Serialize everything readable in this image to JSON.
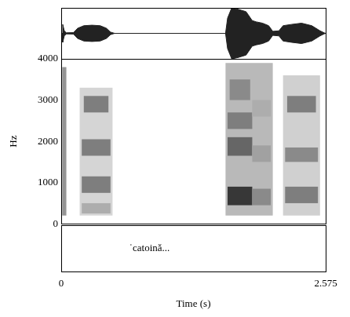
{
  "chart_data": [
    {
      "type": "waveform",
      "xlim": [
        0,
        2.575
      ],
      "xticks": [],
      "ylim": [
        -1,
        1
      ],
      "yticks": [
        0
      ],
      "grid": true,
      "tick_labels": false,
      "color": "#222222",
      "x": [
        0,
        0.01,
        0.015,
        0.03,
        0.05,
        0.12,
        0.16,
        0.22,
        0.3,
        0.38,
        0.44,
        0.48,
        0.52,
        1.6,
        1.62,
        1.66,
        1.72,
        1.8,
        1.86,
        1.9,
        1.96,
        2.02,
        2.06,
        2.12,
        2.16,
        2.24,
        2.34,
        2.44,
        2.52,
        2.56,
        2.575
      ],
      "max": [
        0,
        0,
        0.35,
        0.1,
        0.02,
        0.03,
        0.2,
        0.3,
        0.32,
        0.3,
        0.2,
        0.05,
        0,
        0,
        0.6,
        1.0,
        0.95,
        0.85,
        0.5,
        0.45,
        0.4,
        0.3,
        0.08,
        0.1,
        0.3,
        0.35,
        0.4,
        0.3,
        0.1,
        0.02,
        0
      ],
      "min": [
        0,
        0,
        -0.35,
        -0.1,
        -0.02,
        -0.03,
        -0.2,
        -0.3,
        -0.32,
        -0.3,
        -0.2,
        -0.05,
        0,
        0,
        -0.6,
        -1.0,
        -0.95,
        -0.85,
        -0.5,
        -0.45,
        -0.4,
        -0.3,
        -0.08,
        -0.1,
        -0.3,
        -0.35,
        -0.4,
        -0.3,
        -0.1,
        -0.02,
        0
      ]
    },
    {
      "type": "spectrogram",
      "y_label": "Hz",
      "xlim": [
        0,
        2.575
      ],
      "xticks": [],
      "ylim": [
        0,
        4000
      ],
      "yticks": [
        0,
        1000,
        2000,
        3000,
        4000
      ],
      "grid": false,
      "tick_labels": "y",
      "level_range": [
        0,
        1
      ],
      "cells": [
        {
          "t": [
            0.01,
            0.05
          ],
          "f": [
            200,
            3800
          ],
          "level": 0.45
        },
        {
          "t": [
            0.18,
            0.5
          ],
          "f": [
            200,
            3300
          ],
          "level": 0.18
        },
        {
          "t": [
            0.2,
            0.48
          ],
          "f": [
            250,
            500
          ],
          "level": 0.35
        },
        {
          "t": [
            0.2,
            0.48
          ],
          "f": [
            750,
            1150
          ],
          "level": 0.55
        },
        {
          "t": [
            0.2,
            0.48
          ],
          "f": [
            1650,
            2050
          ],
          "level": 0.55
        },
        {
          "t": [
            0.22,
            0.46
          ],
          "f": [
            2700,
            3100
          ],
          "level": 0.55
        },
        {
          "t": [
            1.6,
            2.06
          ],
          "f": [
            200,
            3900
          ],
          "level": 0.3
        },
        {
          "t": [
            1.62,
            1.86
          ],
          "f": [
            450,
            900
          ],
          "level": 0.85
        },
        {
          "t": [
            1.86,
            2.04
          ],
          "f": [
            450,
            850
          ],
          "level": 0.5
        },
        {
          "t": [
            1.62,
            1.86
          ],
          "f": [
            1650,
            2100
          ],
          "level": 0.65
        },
        {
          "t": [
            1.62,
            1.86
          ],
          "f": [
            2300,
            2700
          ],
          "level": 0.55
        },
        {
          "t": [
            1.64,
            1.84
          ],
          "f": [
            3000,
            3500
          ],
          "level": 0.5
        },
        {
          "t": [
            1.86,
            2.04
          ],
          "f": [
            1500,
            1900
          ],
          "level": 0.4
        },
        {
          "t": [
            1.86,
            2.04
          ],
          "f": [
            2600,
            3000
          ],
          "level": 0.35
        },
        {
          "t": [
            2.16,
            2.52
          ],
          "f": [
            200,
            3600
          ],
          "level": 0.2
        },
        {
          "t": [
            2.18,
            2.5
          ],
          "f": [
            500,
            900
          ],
          "level": 0.55
        },
        {
          "t": [
            2.18,
            2.5
          ],
          "f": [
            1500,
            1850
          ],
          "level": 0.5
        },
        {
          "t": [
            2.2,
            2.48
          ],
          "f": [
            2700,
            3100
          ],
          "level": 0.55
        }
      ]
    },
    {
      "type": "text_tier",
      "x_label": "Time (s)",
      "xlim": [
        0,
        2.575
      ],
      "xticks": [
        0,
        2.575
      ],
      "grid": false,
      "tick_labels": "x",
      "annotations": [
        {
          "text": "ˈcatoină...",
          "x": 0.86
        }
      ]
    }
  ]
}
